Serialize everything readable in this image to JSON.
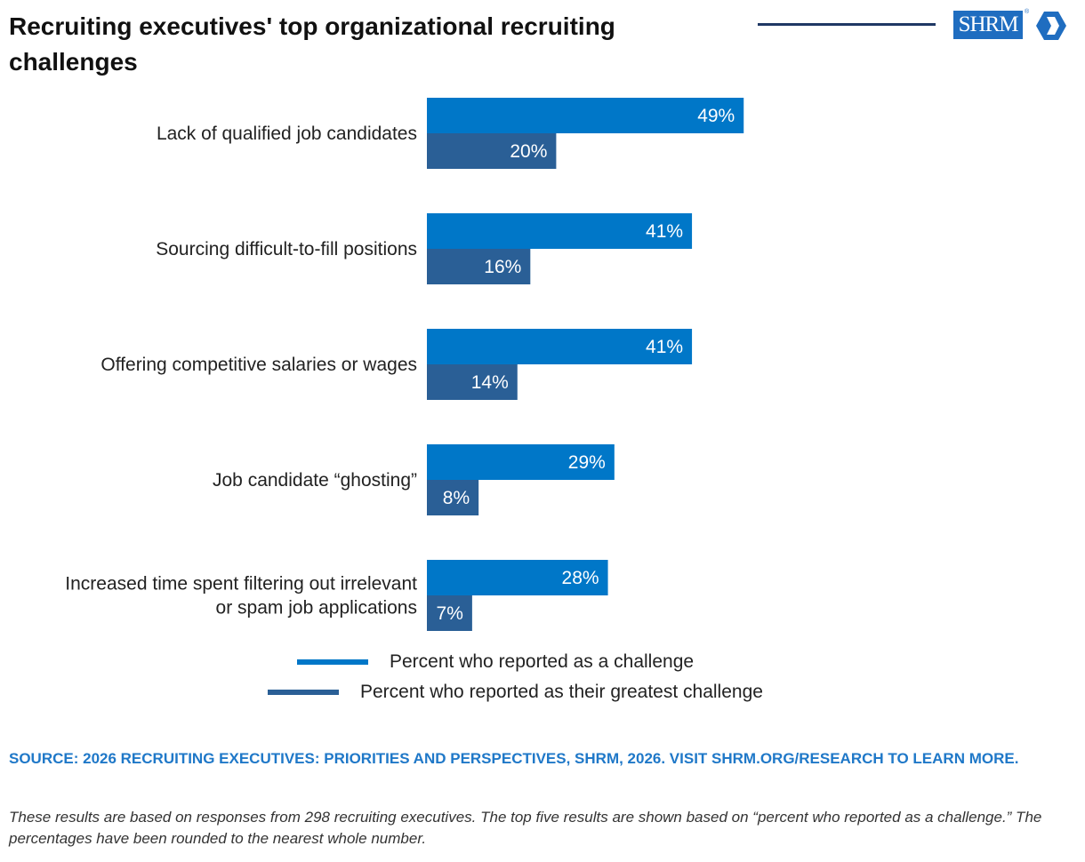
{
  "header": {
    "title": "Recruiting executives' top organizational recruiting challenges",
    "logo_text": "SHRM",
    "logo_reg": "®",
    "logo_icon": "shrm-chevron-logo-icon"
  },
  "colors": {
    "challenge": "#0077c8",
    "greatest": "#2a5f96",
    "header_rule": "#1f3864",
    "source_text": "#1f78c8"
  },
  "chart_data": {
    "type": "bar",
    "orientation": "horizontal",
    "categories": [
      [
        "Lack of qualified job candidates"
      ],
      [
        "Sourcing difficult-to-fill positions"
      ],
      [
        "Offering competitive salaries or wages"
      ],
      [
        "Job candidate “ghosting”"
      ],
      [
        "Increased time spent filtering out irrelevant",
        "or spam job applications"
      ]
    ],
    "series": [
      {
        "name": "Percent who reported as a challenge",
        "values": [
          49,
          41,
          41,
          29,
          28
        ],
        "labels": [
          "49%",
          "41%",
          "41%",
          "29%",
          "28%"
        ]
      },
      {
        "name": "Percent who reported as their greatest challenge",
        "values": [
          20,
          16,
          14,
          8,
          7
        ],
        "labels": [
          "20%",
          "16%",
          "14%",
          "8%",
          "7%"
        ]
      }
    ],
    "value_unit": "%",
    "grid": false,
    "legend_position": "bottom"
  },
  "footer": {
    "source": "SOURCE: 2026 RECRUITING EXECUTIVES: PRIORITIES AND PERSPECTIVES, SHRM, 2026. VISIT SHRM.ORG/RESEARCH TO LEARN MORE.",
    "note": "These results are based on responses from 298 recruiting executives. The top five results are shown based on “percent who reported as a challenge.” The percentages have been rounded to the nearest whole number."
  }
}
